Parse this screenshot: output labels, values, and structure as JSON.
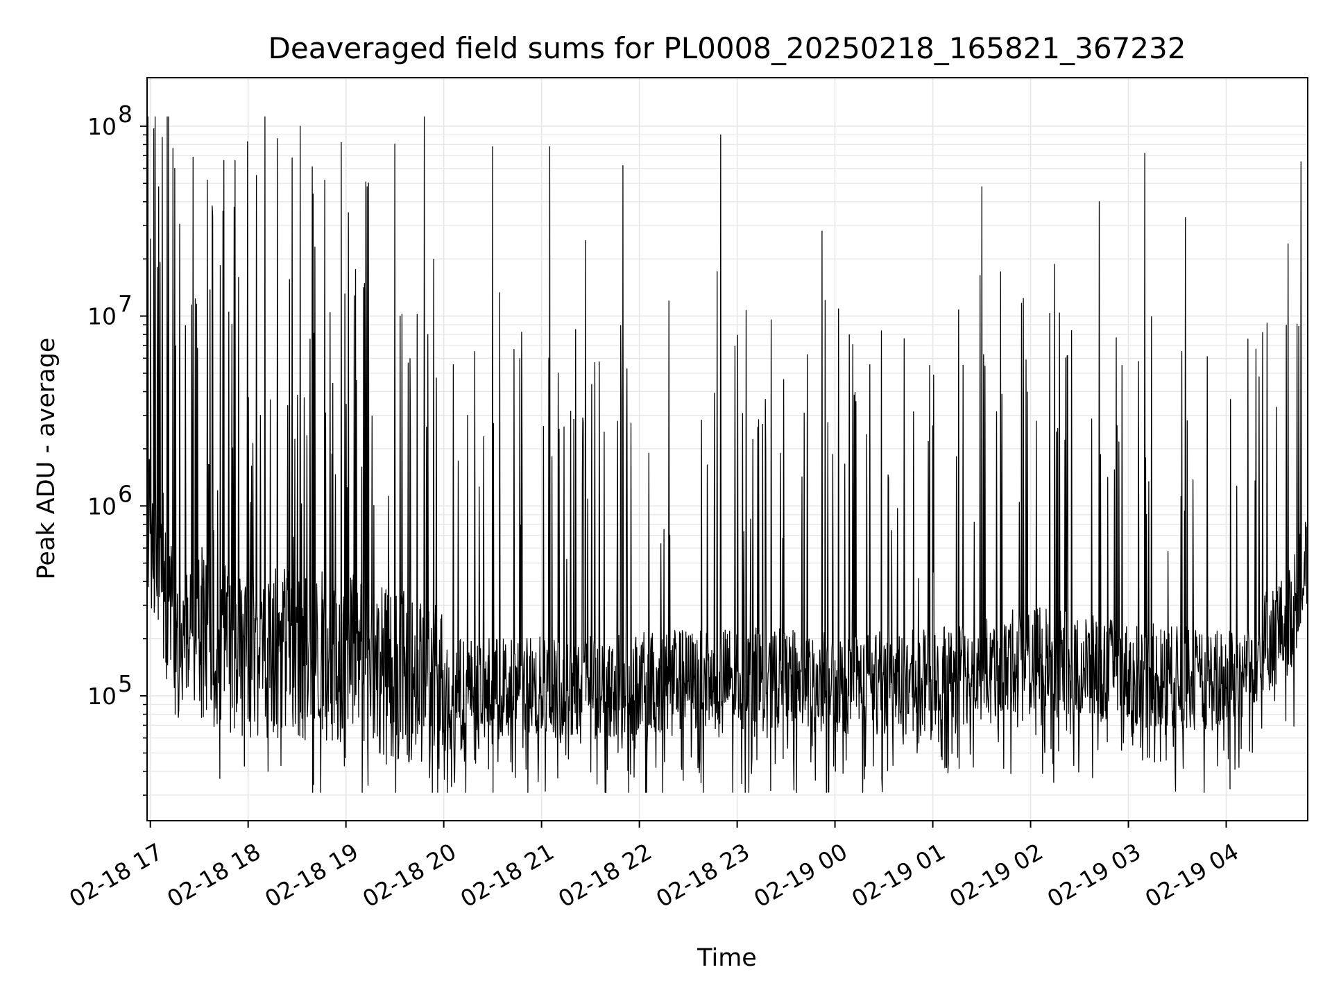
{
  "chart_data": {
    "type": "line",
    "title": "Deaveraged field sums for PL0008_20250218_165821_367232",
    "xlabel": "Time",
    "ylabel": "Peak ADU - average",
    "yscale": "log",
    "ylim": [
      22000,
      180000000
    ],
    "xlim": [
      "2025-02-18T16:58",
      "2025-02-19T04:50"
    ],
    "grid": true,
    "line_color": "#000000",
    "grid_color": "#e6e6e6",
    "x_ticks": [
      {
        "value": "2025-02-18T17:00",
        "label": "02-18 17"
      },
      {
        "value": "2025-02-18T18:00",
        "label": "02-18 18"
      },
      {
        "value": "2025-02-18T19:00",
        "label": "02-18 19"
      },
      {
        "value": "2025-02-18T20:00",
        "label": "02-18 20"
      },
      {
        "value": "2025-02-18T21:00",
        "label": "02-18 21"
      },
      {
        "value": "2025-02-18T22:00",
        "label": "02-18 22"
      },
      {
        "value": "2025-02-18T23:00",
        "label": "02-18 23"
      },
      {
        "value": "2025-02-19T00:00",
        "label": "02-19 00"
      },
      {
        "value": "2025-02-19T01:00",
        "label": "02-19 01"
      },
      {
        "value": "2025-02-19T02:00",
        "label": "02-19 02"
      },
      {
        "value": "2025-02-19T03:00",
        "label": "02-19 03"
      },
      {
        "value": "2025-02-19T04:00",
        "label": "02-19 04"
      }
    ],
    "y_ticks": [
      {
        "value": 100000,
        "base": "10",
        "exp": "5"
      },
      {
        "value": 1000000,
        "base": "10",
        "exp": "6"
      },
      {
        "value": 10000000,
        "base": "10",
        "exp": "7"
      },
      {
        "value": 100000000,
        "base": "10",
        "exp": "8"
      }
    ],
    "series": [
      {
        "baseline_profile": [
          {
            "t": "2025-02-18T16:58",
            "v": 900000
          },
          {
            "t": "2025-02-18T17:05",
            "v": 600000
          },
          {
            "t": "2025-02-18T17:15",
            "v": 200000
          },
          {
            "t": "2025-02-18T18:00",
            "v": 170000
          },
          {
            "t": "2025-02-18T19:00",
            "v": 160000
          },
          {
            "t": "2025-02-18T20:00",
            "v": 110000
          },
          {
            "t": "2025-02-18T21:00",
            "v": 110000
          },
          {
            "t": "2025-02-18T22:00",
            "v": 115000
          },
          {
            "t": "2025-02-18T23:00",
            "v": 125000
          },
          {
            "t": "2025-02-19T00:00",
            "v": 115000
          },
          {
            "t": "2025-02-19T01:00",
            "v": 120000
          },
          {
            "t": "2025-02-19T02:00",
            "v": 160000
          },
          {
            "t": "2025-02-19T03:00",
            "v": 130000
          },
          {
            "t": "2025-02-19T04:00",
            "v": 120000
          },
          {
            "t": "2025-02-19T04:40",
            "v": 250000
          },
          {
            "t": "2025-02-19T04:50",
            "v": 550000
          }
        ],
        "peaks": [
          {
            "t": "2025-02-18T17:05",
            "v": 48000000
          },
          {
            "t": "2025-02-18T17:15",
            "v": 60000000
          },
          {
            "t": "2025-02-18T17:35",
            "v": 52000000
          },
          {
            "t": "2025-02-18T17:38",
            "v": 38000000
          },
          {
            "t": "2025-02-18T17:45",
            "v": 66000000
          },
          {
            "t": "2025-02-18T17:52",
            "v": 66000000
          },
          {
            "t": "2025-02-18T18:05",
            "v": 55000000
          },
          {
            "t": "2025-02-18T18:18",
            "v": 86000000
          },
          {
            "t": "2025-02-18T18:27",
            "v": 68000000
          },
          {
            "t": "2025-02-18T18:32",
            "v": 100000000
          },
          {
            "t": "2025-02-18T18:40",
            "v": 44000000
          },
          {
            "t": "2025-02-18T18:47",
            "v": 52000000
          },
          {
            "t": "2025-02-18T18:57",
            "v": 82000000
          },
          {
            "t": "2025-02-18T19:13",
            "v": 48000000
          },
          {
            "t": "2025-02-18T19:48",
            "v": 112000000
          },
          {
            "t": "2025-02-18T20:30",
            "v": 78000000
          },
          {
            "t": "2025-02-18T21:05",
            "v": 78000000
          },
          {
            "t": "2025-02-18T21:27",
            "v": 25000000
          },
          {
            "t": "2025-02-18T21:50",
            "v": 62000000
          },
          {
            "t": "2025-02-18T22:18",
            "v": 12000000
          },
          {
            "t": "2025-02-18T22:50",
            "v": 90000000
          },
          {
            "t": "2025-02-18T23:52",
            "v": 28000000
          },
          {
            "t": "2025-02-19T00:58",
            "v": 5500000
          },
          {
            "t": "2025-02-19T01:30",
            "v": 48000000
          },
          {
            "t": "2025-02-19T02:42",
            "v": 40000000
          },
          {
            "t": "2025-02-19T03:10",
            "v": 72000000
          },
          {
            "t": "2025-02-19T03:35",
            "v": 33000000
          },
          {
            "t": "2025-02-19T04:38",
            "v": 24000000
          },
          {
            "t": "2025-02-19T04:46",
            "v": 65000000
          }
        ],
        "y_min_observed": 31000,
        "y_max_observed": 112000000
      }
    ]
  }
}
